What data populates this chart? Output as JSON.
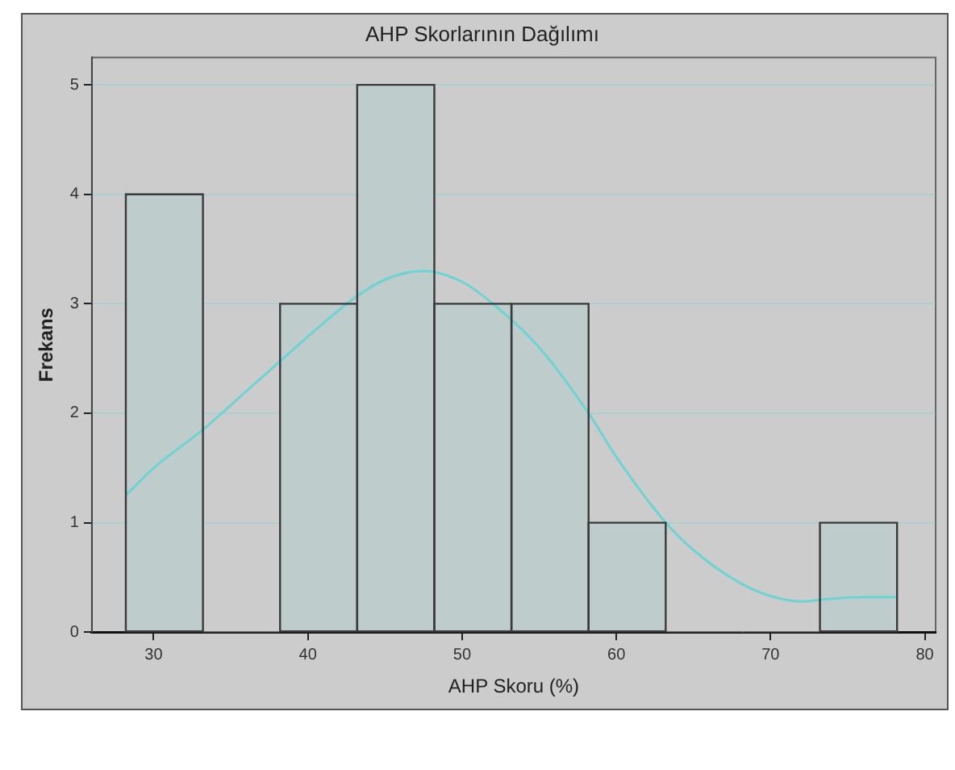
{
  "chart_data": {
    "type": "histogram",
    "title": "AHP Skorlarının Dağılımı",
    "xlabel": "AHP Skoru (%)",
    "ylabel": "Frekans",
    "bins": [
      28.2,
      33.2,
      38.2,
      43.2,
      48.2,
      53.2,
      58.2,
      63.2,
      68.2,
      73.2,
      78.2
    ],
    "values": [
      4,
      0,
      3,
      5,
      3,
      3,
      1,
      0,
      0,
      1
    ],
    "color": "#bfcccc",
    "series": [
      {
        "type": "line",
        "color": "#6dd3d3",
        "x": [
          28.2,
          30,
          33.2,
          36,
          38,
          40,
          43,
          45,
          47.5,
          50,
          52,
          55,
          58.2,
          60,
          63.2,
          65,
          68,
          70,
          72,
          73.5,
          76,
          78.2
        ],
        "values": [
          1.25,
          1.5,
          1.85,
          2.2,
          2.45,
          2.7,
          3.05,
          3.22,
          3.3,
          3.2,
          3.0,
          2.6,
          2.0,
          1.6,
          1.0,
          0.75,
          0.45,
          0.33,
          0.28,
          0.3,
          0.32,
          0.32
        ]
      }
    ],
    "xlim": [
      26,
      80.7
    ],
    "xticks": [
      30,
      40,
      50,
      60,
      70,
      80
    ],
    "ylim": [
      0,
      5.25
    ],
    "yticks": [
      0,
      1,
      2,
      3,
      4,
      5
    ],
    "grid": "y",
    "legend": false,
    "marker": "none"
  }
}
